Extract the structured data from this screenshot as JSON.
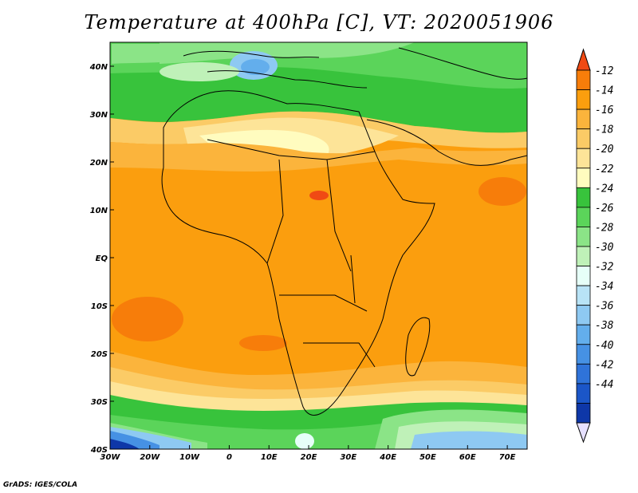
{
  "title": "Temperature at 400hPa [C], VT: 2020051906",
  "footer": "GrADS: IGES/COLA",
  "lon_labels": [
    "30W",
    "20W",
    "10W",
    "0",
    "10E",
    "20E",
    "30E",
    "40E",
    "50E",
    "60E",
    "70E"
  ],
  "lat_labels": [
    "40N",
    "30N",
    "20N",
    "10N",
    "EQ",
    "10S",
    "20S",
    "30S",
    "40S"
  ],
  "colorbar": {
    "labels": [
      "-12",
      "-14",
      "-16",
      "-18",
      "-20",
      "-22",
      "-24",
      "-26",
      "-28",
      "-30",
      "-32",
      "-34",
      "-36",
      "-38",
      "-40",
      "-42",
      "-44"
    ],
    "colors": [
      "#f04a14",
      "#f77d0a",
      "#fb9e0e",
      "#fbb43c",
      "#fbcb66",
      "#fde498",
      "#fffcbf",
      "#38c33c",
      "#5bd45a",
      "#8be487",
      "#bff1b8",
      "#e6fff8",
      "#b8e3f6",
      "#8ec9f2",
      "#63aeec",
      "#4691e4",
      "#2f73d9",
      "#1b56c8",
      "#0e37a8",
      "#08186e"
    ]
  },
  "icons": {
    "arrow_top": "colorbar-top-triangle",
    "arrow_bottom": "colorbar-bottom-triangle"
  }
}
